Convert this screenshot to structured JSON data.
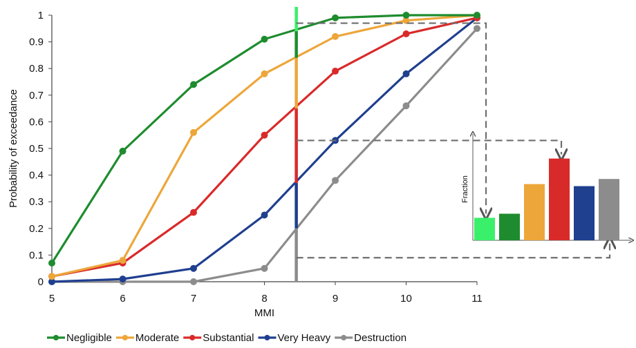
{
  "chart_data": {
    "type": "line",
    "x": [
      5,
      6,
      7,
      8,
      9,
      10,
      11
    ],
    "xlabel": "MMI",
    "ylabel": "Probability of exceedance",
    "xlim": [
      5,
      11
    ],
    "ylim": [
      0,
      1
    ],
    "xticks": [
      "5",
      "6",
      "7",
      "8",
      "9",
      "10",
      "11"
    ],
    "yticks": [
      "0",
      "0.1",
      "0.2",
      "0.3",
      "0.4",
      "0.5",
      "0.6",
      "0.7",
      "0.8",
      "0.9",
      "1"
    ],
    "grid": false,
    "legend_position": "bottom",
    "series": [
      {
        "name": "Negligible",
        "color": "#1e8c2e",
        "values": [
          0.07,
          0.49,
          0.74,
          0.91,
          0.99,
          1.0,
          1.0
        ]
      },
      {
        "name": "Moderate",
        "color": "#eda63a",
        "values": [
          0.02,
          0.08,
          0.56,
          0.78,
          0.92,
          0.98,
          1.0
        ]
      },
      {
        "name": "Substantial",
        "color": "#d92a2a",
        "values": [
          0.02,
          0.07,
          0.26,
          0.55,
          0.79,
          0.93,
          0.99
        ]
      },
      {
        "name": "Very Heavy",
        "color": "#1f3f8f",
        "values": [
          0.0,
          0.01,
          0.05,
          0.25,
          0.53,
          0.78,
          0.99
        ]
      },
      {
        "name": "Destruction",
        "color": "#8c8c8c",
        "values": [
          0.0,
          0.0,
          0.0,
          0.05,
          0.38,
          0.66,
          0.95
        ]
      }
    ],
    "marker_mmi": 8.45,
    "marker_segments": [
      {
        "color": "#3af06a",
        "from": 1.0,
        "to": 0.94
      },
      {
        "color": "#1e8c2e",
        "from": 0.94,
        "to": 0.84
      },
      {
        "color": "#eda63a",
        "from": 0.84,
        "to": 0.65
      },
      {
        "color": "#d92a2a",
        "from": 0.65,
        "to": 0.37
      },
      {
        "color": "#1f3f8f",
        "from": 0.37,
        "to": 0.2
      },
      {
        "color": "#8c8c8c",
        "from": 0.2,
        "to": 0.0
      }
    ],
    "inset": {
      "type": "bar",
      "ylabel": "Fraction",
      "colors": [
        "#3af06a",
        "#1e8c2e",
        "#eda63a",
        "#d92a2a",
        "#1f3f8f",
        "#8c8c8c"
      ],
      "values": [
        0.22,
        0.26,
        0.55,
        0.8,
        0.53,
        0.6
      ],
      "ylim": [
        0,
        1
      ]
    }
  }
}
